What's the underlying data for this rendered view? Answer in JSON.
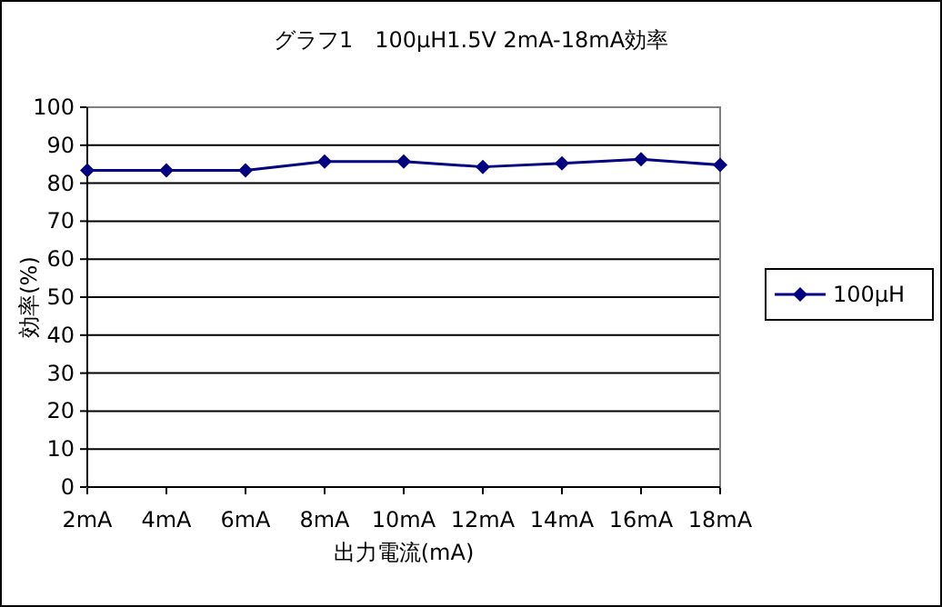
{
  "chart_data": {
    "type": "line",
    "title": "グラフ1　100μH1.5V 2mA-18mA効率",
    "xlabel": "出力電流(mA)",
    "ylabel": "効率(%)",
    "categories": [
      "2mA",
      "4mA",
      "6mA",
      "8mA",
      "10mA",
      "12mA",
      "14mA",
      "16mA",
      "18mA"
    ],
    "series": [
      {
        "name": "100μH",
        "color": "#000080",
        "values": [
          83.4,
          83.4,
          83.4,
          85.7,
          85.7,
          84.3,
          85.2,
          86.3,
          84.8
        ]
      }
    ],
    "ylim": [
      0,
      100
    ],
    "yticks": [
      0,
      10,
      20,
      30,
      40,
      50,
      60,
      70,
      80,
      90,
      100
    ],
    "grid": "y",
    "legend": "right",
    "marker": "diamond",
    "line_style": "solid"
  }
}
